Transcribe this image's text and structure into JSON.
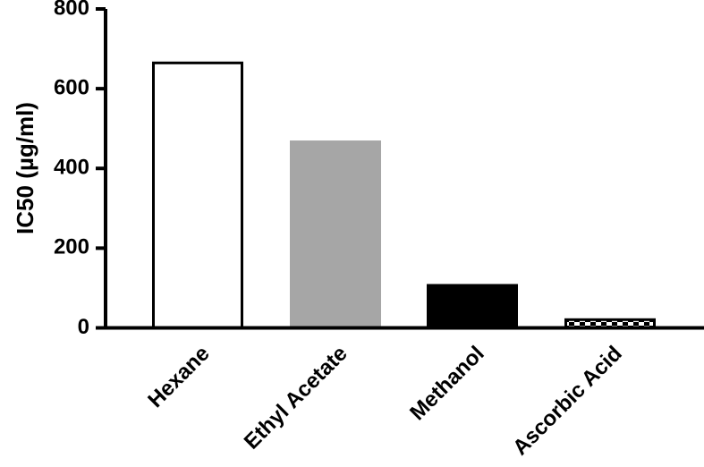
{
  "chart_data": {
    "type": "bar",
    "title": "",
    "xlabel": "",
    "ylabel": "IC50 (µg/ml)",
    "ylim": [
      0,
      800
    ],
    "yticks": [
      0,
      200,
      400,
      600,
      800
    ],
    "grid": false,
    "categories": [
      "Hexane",
      "Ethyl Acetate",
      "Methanol",
      "Ascorbic Acid"
    ],
    "values": [
      668,
      470,
      110,
      24
    ],
    "bar_styles": [
      {
        "fill": "#ffffff",
        "stroke": "#000000",
        "pattern": "none"
      },
      {
        "fill": "#a6a6a6",
        "stroke": "#a6a6a6",
        "pattern": "none"
      },
      {
        "fill": "#000000",
        "stroke": "#000000",
        "pattern": "none"
      },
      {
        "fill": "#ffffff",
        "stroke": "#000000",
        "pattern": "checker"
      }
    ]
  }
}
